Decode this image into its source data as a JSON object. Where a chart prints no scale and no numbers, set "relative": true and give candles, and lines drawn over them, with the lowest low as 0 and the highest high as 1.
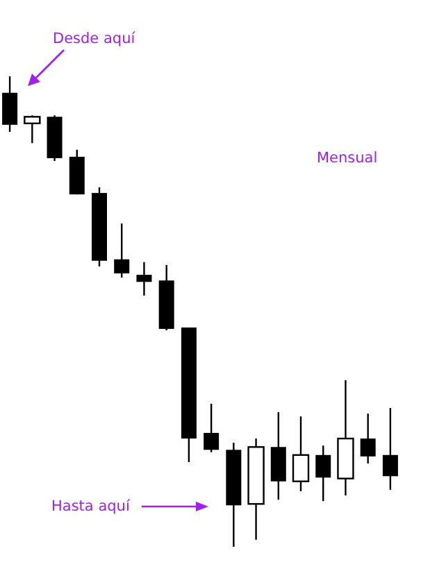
{
  "chart_data": {
    "type": "candlestick",
    "relative": true,
    "color": "#000000",
    "categories": [
      null,
      null,
      null,
      null,
      null,
      null,
      null,
      null,
      null,
      null,
      null,
      null,
      null,
      null,
      null,
      null,
      null,
      null
    ],
    "ohlc": [
      [
        0.965,
        1,
        0.882,
        0.897
      ],
      [
        0.9,
        0.917,
        0.858,
        0.914
      ],
      [
        0.914,
        0.917,
        0.82,
        0.826
      ],
      [
        0.829,
        0.844,
        0.749,
        0.749
      ],
      [
        0.752,
        0.764,
        0.596,
        0.608
      ],
      [
        0.611,
        0.687,
        0.572,
        0.581
      ],
      [
        0.578,
        0.605,
        0.534,
        0.563
      ],
      [
        0.566,
        0.599,
        0.46,
        0.463
      ],
      [
        0.466,
        0.466,
        0.18,
        0.23
      ],
      [
        0.242,
        0.304,
        0.201,
        0.206
      ],
      [
        0.206,
        0.221,
        0,
        0.088
      ],
      [
        0.091,
        0.23,
        0.015,
        0.212
      ],
      [
        0.212,
        0.286,
        0.1,
        0.139
      ],
      [
        0.139,
        0.277,
        0.118,
        0.195
      ],
      [
        0.195,
        0.215,
        0.097,
        0.147
      ],
      [
        0.145,
        0.354,
        0.109,
        0.23
      ],
      [
        0.23,
        0.283,
        0.177,
        0.192
      ],
      [
        0.195,
        0.295,
        0.121,
        0.15
      ]
    ],
    "annotations": [
      "Desde aquí",
      "Mensual",
      "Hasta aquí"
    ]
  }
}
